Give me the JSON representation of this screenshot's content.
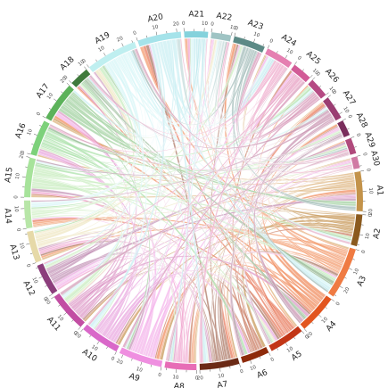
{
  "sectors": [
    {
      "label": "A1",
      "size": 20,
      "color": "#c3934a",
      "ribbon": "#dcb27a"
    },
    {
      "label": "A2",
      "size": 16,
      "color": "#8b5a1e",
      "ribbon": "#c69554"
    },
    {
      "label": "A3",
      "size": 26,
      "color": "#ef7b43",
      "ribbon": "#f39a6c"
    },
    {
      "label": "A4",
      "size": 20,
      "color": "#e2551f",
      "ribbon": "#f08a5c"
    },
    {
      "label": "A5",
      "size": 18,
      "color": "#c23616",
      "ribbon": "#e8785a"
    },
    {
      "label": "A6",
      "size": 14,
      "color": "#8e2b0b",
      "ribbon": "#c97a60"
    },
    {
      "label": "A7",
      "size": 20,
      "color": "#6b2a16",
      "ribbon": "#a9735f"
    },
    {
      "label": "A8",
      "size": 16,
      "color": "#e76db6",
      "ribbon": "#f0a3cf"
    },
    {
      "label": "A9",
      "size": 22,
      "color": "#ef8fe0",
      "ribbon": "#f4b3ea"
    },
    {
      "label": "A10",
      "size": 20,
      "color": "#d968c9",
      "ribbon": "#e9a6df"
    },
    {
      "label": "A11",
      "size": 20,
      "color": "#c24ea3",
      "ribbon": "#dd97c6"
    },
    {
      "label": "A12",
      "size": 16,
      "color": "#8c3e7c",
      "ribbon": "#c291b6"
    },
    {
      "label": "A13",
      "size": 16,
      "color": "#e6d9a8",
      "ribbon": "#efe6c1"
    },
    {
      "label": "A14",
      "size": 14,
      "color": "#b8e6a8",
      "ribbon": "#cfeec3"
    },
    {
      "label": "A15",
      "size": 20,
      "color": "#a7e39b",
      "ribbon": "#c6ecbd"
    },
    {
      "label": "A16",
      "size": 18,
      "color": "#7dd17b",
      "ribbon": "#a9e0a7"
    },
    {
      "label": "A17",
      "size": 20,
      "color": "#5cb25a",
      "ribbon": "#9fd09e"
    },
    {
      "label": "A18",
      "size": 10,
      "color": "#3f7a3c",
      "ribbon": "#8fb38d"
    },
    {
      "label": "A19",
      "size": 26,
      "color": "#bfeff0",
      "ribbon": "#d6f5f6"
    },
    {
      "label": "A20",
      "size": 22,
      "color": "#a5e3ea",
      "ribbon": "#c9eff3"
    },
    {
      "label": "A21",
      "size": 12,
      "color": "#84d2dc",
      "ribbon": "#b9e6ec"
    },
    {
      "label": "A22",
      "size": 10,
      "color": "#9fc4c4",
      "ribbon": "#c2dada"
    },
    {
      "label": "A23",
      "size": 16,
      "color": "#5c8a86",
      "ribbon": "#9fbab7"
    },
    {
      "label": "A24",
      "size": 14,
      "color": "#e57fb1",
      "ribbon": "#efabcc"
    },
    {
      "label": "A25",
      "size": 10,
      "color": "#d25b97",
      "ribbon": "#e69dc0"
    },
    {
      "label": "A26",
      "size": 10,
      "color": "#b54a83",
      "ribbon": "#d798b9"
    },
    {
      "label": "A27",
      "size": 12,
      "color": "#9b3d72",
      "ribbon": "#c994b1"
    },
    {
      "label": "A28",
      "size": 8,
      "color": "#7a2e5c",
      "ribbon": "#b590a7"
    },
    {
      "label": "A29",
      "size": 8,
      "color": "#b04a7c",
      "ribbon": "#d49cb7"
    },
    {
      "label": "A30",
      "size": 6,
      "color": "#d07aa4",
      "ribbon": "#e6b0c9"
    }
  ],
  "ticks": [
    "0",
    "10",
    "20"
  ]
}
